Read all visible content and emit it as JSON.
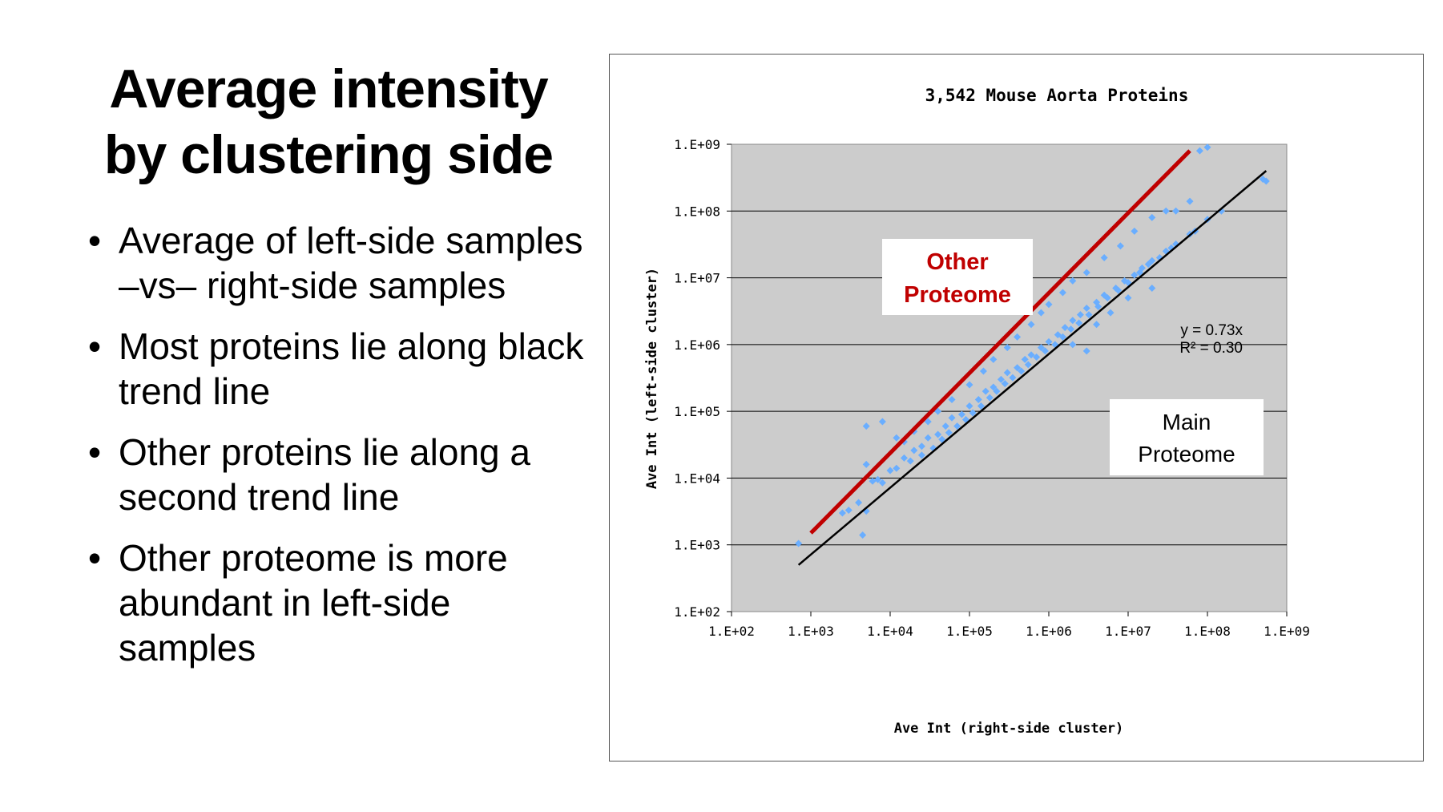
{
  "slide": {
    "title_line1": "Average intensity",
    "title_line2": "by clustering side",
    "bullets": [
      "Average of left-side samples –vs– right-side samples",
      "Most proteins lie along black trend line",
      "Other proteins lie along a second trend line",
      "Other proteome is more abundant in left-side samples"
    ]
  },
  "colors": {
    "plot_background": "#cccccc",
    "points": "#6aaeff",
    "main_trend": "#000000",
    "other_trend": "#c00000",
    "other_label": "#c00000"
  },
  "chart_data": {
    "type": "scatter",
    "title": "3,542 Mouse Aorta Proteins",
    "xlabel": "Ave Int (right-side cluster)",
    "ylabel": "Ave Int (left-side cluster)",
    "x_scale": "log",
    "y_scale": "log",
    "xlim": [
      100,
      1000000000
    ],
    "ylim": [
      100,
      1000000000
    ],
    "x_tick_labels": [
      "1.E+02",
      "1.E+03",
      "1.E+04",
      "1.E+05",
      "1.E+06",
      "1.E+07",
      "1.E+08",
      "1.E+09"
    ],
    "y_tick_labels": [
      "1.E+02",
      "1.E+03",
      "1.E+04",
      "1.E+05",
      "1.E+06",
      "1.E+07",
      "1.E+08",
      "1.E+09"
    ],
    "grid": "horizontal",
    "series": [
      {
        "name": "",
        "color": "#6aaeff",
        "marker": "diamond",
        "points": [
          [
            700,
            1050
          ],
          [
            2500,
            3000
          ],
          [
            3000,
            3300
          ],
          [
            4000,
            4300
          ],
          [
            4500,
            1400
          ],
          [
            5000,
            3200
          ],
          [
            6000,
            9000
          ],
          [
            5000,
            16000
          ],
          [
            7000,
            9500
          ],
          [
            8000,
            8500
          ],
          [
            10000,
            13000
          ],
          [
            12000,
            14000
          ],
          [
            15000,
            20000
          ],
          [
            20000,
            26000
          ],
          [
            25000,
            30000
          ],
          [
            30000,
            40000
          ],
          [
            40000,
            45000
          ],
          [
            50000,
            60000
          ],
          [
            60000,
            80000
          ],
          [
            80000,
            90000
          ],
          [
            100000,
            120000
          ],
          [
            130000,
            150000
          ],
          [
            160000,
            200000
          ],
          [
            200000,
            230000
          ],
          [
            250000,
            300000
          ],
          [
            300000,
            380000
          ],
          [
            400000,
            450000
          ],
          [
            500000,
            600000
          ],
          [
            600000,
            700000
          ],
          [
            800000,
            900000
          ],
          [
            1000000,
            1100000
          ],
          [
            1300000,
            1400000
          ],
          [
            1600000,
            1800000
          ],
          [
            2000000,
            2300000
          ],
          [
            2500000,
            2800000
          ],
          [
            3000000,
            3500000
          ],
          [
            4000000,
            4300000
          ],
          [
            5000000,
            5500000
          ],
          [
            7000000,
            7000000
          ],
          [
            9000000,
            9000000
          ],
          [
            12000000,
            11000000
          ],
          [
            15000000,
            14000000
          ],
          [
            20000000,
            18000000
          ],
          [
            30000000,
            25000000
          ],
          [
            40000000,
            32000000
          ],
          [
            70000000,
            50000000
          ],
          [
            100000000,
            75000000
          ],
          [
            15000,
            35000
          ],
          [
            20000,
            50000
          ],
          [
            30000,
            70000
          ],
          [
            40000,
            100000
          ],
          [
            60000,
            150000
          ],
          [
            100000,
            250000
          ],
          [
            150000,
            400000
          ],
          [
            200000,
            600000
          ],
          [
            300000,
            900000
          ],
          [
            400000,
            1300000
          ],
          [
            600000,
            2000000
          ],
          [
            800000,
            3000000
          ],
          [
            1000000,
            4000000
          ],
          [
            1500000,
            6000000
          ],
          [
            2000000,
            9000000
          ],
          [
            3000000,
            12000000
          ],
          [
            5000000,
            20000000
          ],
          [
            8000000,
            30000000
          ],
          [
            12000000,
            50000000
          ],
          [
            20000000,
            80000000
          ],
          [
            30000000,
            100000000
          ],
          [
            80000000,
            800000000
          ],
          [
            100000000,
            900000000
          ],
          [
            60000000,
            140000000
          ],
          [
            40000000,
            100000000
          ],
          [
            500000000,
            300000000
          ],
          [
            550000000,
            280000000
          ],
          [
            150000000,
            100000000
          ],
          [
            2000000,
            1000000
          ],
          [
            4000000,
            2000000
          ],
          [
            6000000,
            3000000
          ],
          [
            10000000,
            5000000
          ],
          [
            20000000,
            7000000
          ],
          [
            3000000,
            800000
          ],
          [
            5000,
            60000
          ],
          [
            8000,
            70000
          ],
          [
            12000,
            40000
          ],
          [
            18000,
            18000
          ],
          [
            25000,
            22000
          ],
          [
            35000,
            28000
          ],
          [
            45000,
            38000
          ],
          [
            55000,
            48000
          ],
          [
            70000,
            60000
          ],
          [
            90000,
            75000
          ],
          [
            110000,
            95000
          ],
          [
            140000,
            120000
          ],
          [
            180000,
            160000
          ],
          [
            220000,
            200000
          ],
          [
            280000,
            260000
          ],
          [
            350000,
            320000
          ],
          [
            450000,
            400000
          ],
          [
            550000,
            500000
          ],
          [
            700000,
            650000
          ],
          [
            900000,
            800000
          ],
          [
            1200000,
            1000000
          ],
          [
            1500000,
            1300000
          ],
          [
            1900000,
            1700000
          ],
          [
            2400000,
            2100000
          ],
          [
            3200000,
            2800000
          ],
          [
            4200000,
            3700000
          ],
          [
            5500000,
            5000000
          ],
          [
            7500000,
            6500000
          ],
          [
            10000000,
            8500000
          ],
          [
            14000000,
            12000000
          ],
          [
            18000000,
            16000000
          ],
          [
            25000000,
            20000000
          ],
          [
            35000000,
            28000000
          ],
          [
            60000000,
            45000000
          ]
        ]
      }
    ],
    "trend_lines": [
      {
        "name": "Main Proteome",
        "color": "#000000",
        "x": [
          700,
          550000000
        ],
        "y": [
          500,
          400000000
        ]
      },
      {
        "name": "Other Proteome",
        "color": "#c00000",
        "x": [
          1000,
          60000000
        ],
        "y": [
          1500,
          800000000
        ]
      }
    ],
    "equation_lines": [
      "y = 0.73x",
      "R² = 0.30"
    ],
    "annotations": {
      "other_line1": "Other",
      "other_line2": "Proteome",
      "main_line1": "Main",
      "main_line2": "Proteome"
    }
  }
}
